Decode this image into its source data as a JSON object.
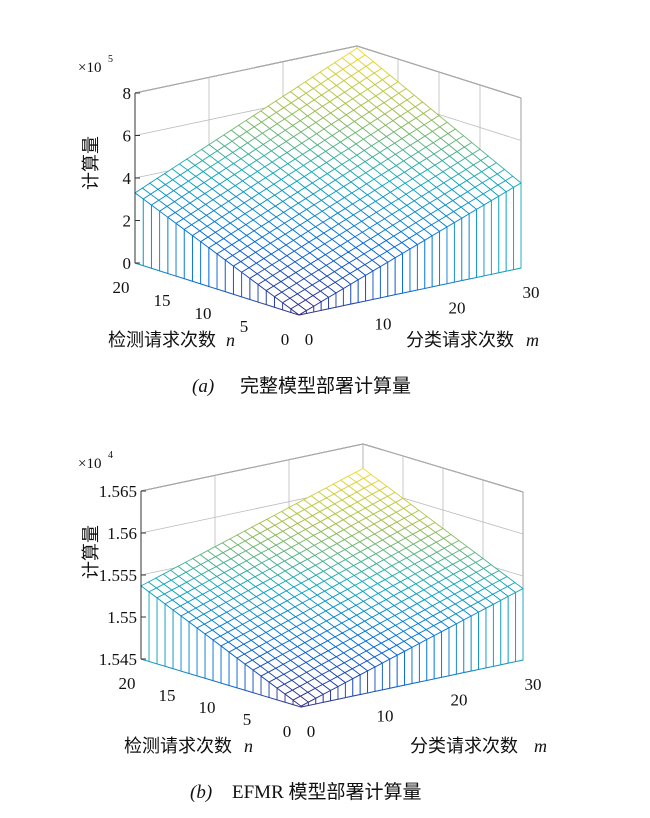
{
  "chart_data": [
    {
      "type": "surface",
      "xlabel": "分类请求次数",
      "xlabel_var": "m",
      "ylabel": "检测请求次数",
      "ylabel_var": "n",
      "zlabel": "计算量",
      "x_ticks": [
        "0",
        "10",
        "20",
        "30"
      ],
      "y_ticks": [
        "0",
        "5",
        "10",
        "15",
        "20"
      ],
      "z_ticks": [
        "0",
        "2",
        "4",
        "6",
        "8"
      ],
      "z_multiplier": "×10",
      "z_multiplier_exp": "5",
      "xlim": [
        0,
        30
      ],
      "ylim": [
        0,
        20
      ],
      "zlim": [
        0,
        800000
      ],
      "z_at_origin": 0,
      "z_at_x_max": 400000,
      "z_at_y_max": 330000,
      "z_at_both_max": 790000,
      "caption_id": "(a)",
      "caption": "完整模型部署计算量"
    },
    {
      "type": "surface",
      "xlabel": "分类请求次数",
      "xlabel_var": "m",
      "ylabel": "检测请求次数",
      "ylabel_var": "n",
      "zlabel": "计算量",
      "x_ticks": [
        "0",
        "10",
        "20",
        "30"
      ],
      "y_ticks": [
        "0",
        "5",
        "10",
        "15",
        "20"
      ],
      "z_ticks": [
        "1.545",
        "1.55",
        "1.555",
        "1.56",
        "1.565"
      ],
      "z_multiplier": "×10",
      "z_multiplier_exp": "4",
      "xlim": [
        0,
        30
      ],
      "ylim": [
        0,
        20
      ],
      "zlim": [
        15450,
        15650
      ],
      "z_at_origin": 15451,
      "z_at_x_max": 15535,
      "z_at_y_max": 15537,
      "z_at_both_max": 15621,
      "caption_id": "(b)",
      "caption": "EFMR 模型部署计算量"
    }
  ]
}
